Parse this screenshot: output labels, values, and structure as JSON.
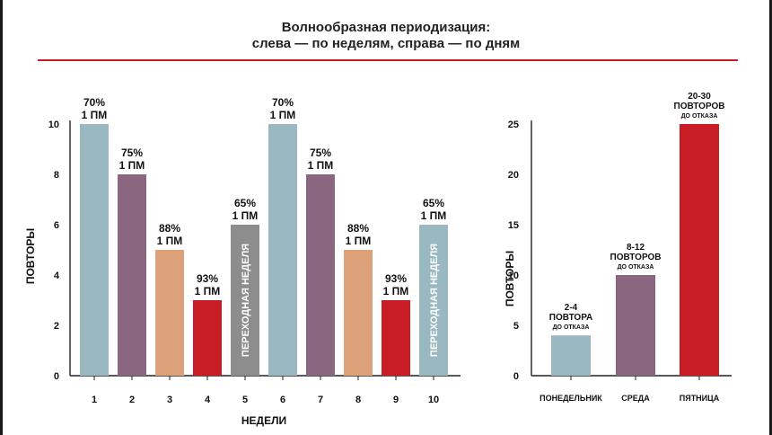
{
  "title_line1": "Волнообразная периодизация:",
  "title_line2": "слева — по неделям, справа — по дням",
  "chart_data": [
    {
      "type": "bar",
      "ylabel": "ПОВТОРЫ",
      "xlabel": "НЕДЕЛИ",
      "ylim": [
        0,
        10
      ],
      "yticks": [
        0,
        2,
        4,
        6,
        8,
        10
      ],
      "categories": [
        "1",
        "2",
        "3",
        "4",
        "5",
        "6",
        "7",
        "8",
        "9",
        "10"
      ],
      "values": [
        10,
        8,
        5,
        3,
        6,
        10,
        8,
        5,
        3,
        6
      ],
      "colors": [
        "#9ab8c2",
        "#8a6680",
        "#dda27a",
        "#c91d25",
        "#8d8d8d",
        "#9ab8c2",
        "#8a6680",
        "#dda27a",
        "#c91d25",
        "#9ab8c2"
      ],
      "labels": [
        [
          "70%",
          "1 ПМ"
        ],
        [
          "75%",
          "1 ПМ"
        ],
        [
          "88%",
          "1 ПМ"
        ],
        [
          "93%",
          "1 ПМ"
        ],
        [
          "65%",
          "1 ПМ"
        ],
        [
          "70%",
          "1 ПМ"
        ],
        [
          "75%",
          "1 ПМ"
        ],
        [
          "88%",
          "1 ПМ"
        ],
        [
          "93%",
          "1 ПМ"
        ],
        [
          "65%",
          "1 ПМ"
        ]
      ],
      "inner_labels": [
        "",
        "",
        "",
        "",
        "ПЕРЕХОДНАЯ НЕДЕЛЯ",
        "",
        "",
        "",
        "",
        "ПЕРЕХОДНАЯ НЕДЕЛЯ"
      ]
    },
    {
      "type": "bar",
      "ylabel": "ПОВТОРЫ",
      "xlabel": "",
      "ylim": [
        0,
        25
      ],
      "yticks": [
        0,
        5,
        10,
        15,
        20,
        25
      ],
      "categories": [
        "ПОНЕДЕЛЬНИК",
        "СРЕДА",
        "ПЯТНИЦА"
      ],
      "values": [
        4,
        10,
        25
      ],
      "colors": [
        "#9ab8c2",
        "#8a6680",
        "#c91d25"
      ],
      "labels": [
        [
          "2-4",
          "ПОВТОРА",
          "ДО ОТКАЗА"
        ],
        [
          "8-12",
          "ПОВТОРОВ",
          "ДО ОТКАЗА"
        ],
        [
          "20-30",
          "ПОВТОРОВ",
          "ДО ОТКАЗА"
        ]
      ]
    }
  ]
}
